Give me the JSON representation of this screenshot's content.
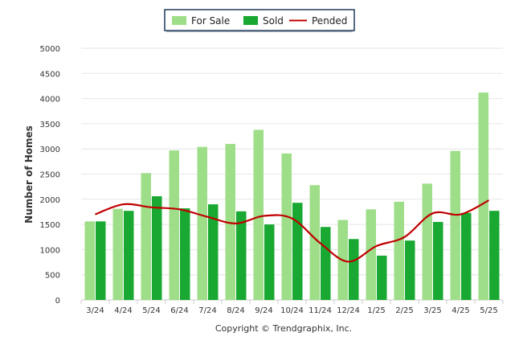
{
  "chart_data": {
    "type": "bar",
    "categories": [
      "3/24",
      "4/24",
      "5/24",
      "6/24",
      "7/24",
      "8/24",
      "9/24",
      "10/24",
      "11/24",
      "12/24",
      "1/25",
      "2/25",
      "3/25",
      "4/25",
      "5/25"
    ],
    "series": [
      {
        "name": "For Sale",
        "kind": "bar",
        "color": "#9ede88",
        "values": [
          1560,
          1810,
          2520,
          2970,
          3040,
          3100,
          3380,
          2910,
          2280,
          1590,
          1800,
          1950,
          2310,
          2960,
          4120
        ]
      },
      {
        "name": "Sold",
        "kind": "bar",
        "color": "#19a831",
        "values": [
          1560,
          1770,
          2060,
          1820,
          1900,
          1760,
          1500,
          1930,
          1450,
          1210,
          880,
          1180,
          1550,
          1730,
          1770
        ]
      },
      {
        "name": "Pended",
        "kind": "line",
        "color": "#c00000",
        "values": [
          1700,
          1900,
          1840,
          1800,
          1650,
          1520,
          1670,
          1620,
          1130,
          760,
          1070,
          1250,
          1720,
          1700,
          1980
        ]
      }
    ],
    "ylabel": "Number of Homes",
    "xlabel": "",
    "ylim": [
      0,
      5000
    ],
    "yticks": [
      0,
      500,
      1000,
      1500,
      2000,
      2500,
      3000,
      3500,
      4000,
      4500,
      5000
    ],
    "grid": true,
    "legend_position": "top-center",
    "credit": "Copyright © Trendgraphix, Inc."
  }
}
